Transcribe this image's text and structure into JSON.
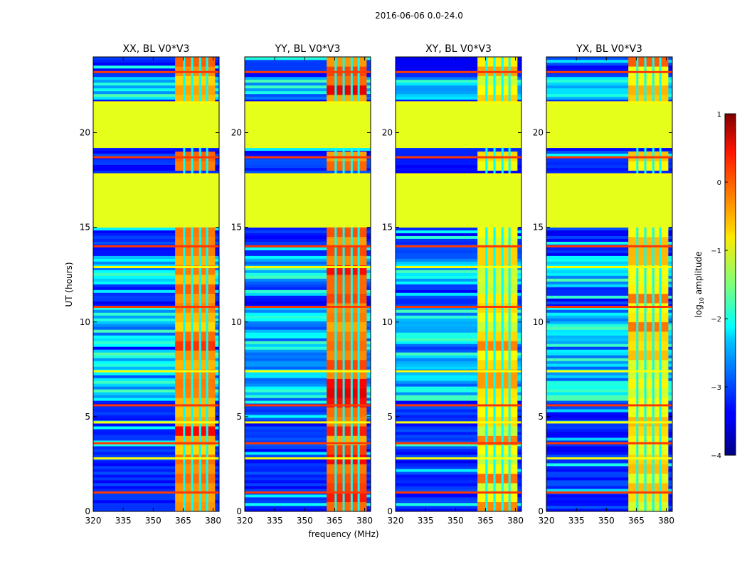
{
  "chart_data": {
    "type": "heatmap",
    "suptitle": "2016-06-06 0.0-24.0",
    "xlabel": "frequency (MHz)",
    "ylabel": "UT (hours)",
    "xlim": [
      320,
      383
    ],
    "ylim": [
      0,
      24
    ],
    "xticks": [
      "320",
      "335",
      "350",
      "365",
      "380"
    ],
    "xtick_values": [
      320,
      335,
      350,
      365,
      380
    ],
    "yticks": [
      "0",
      "5",
      "10",
      "15",
      "20"
    ],
    "ytick_values": [
      0,
      5,
      10,
      15,
      20
    ],
    "colorbar": {
      "label": "log10 amplitude",
      "label_base": "log",
      "label_sub": "10",
      "label_rest": " amplitude",
      "min": -4,
      "max": 1,
      "ticks": [
        "1",
        "0",
        "−1",
        "−2",
        "−3",
        "−4"
      ],
      "tick_values": [
        1,
        0,
        -1,
        -2,
        -3,
        -4
      ],
      "colormap": "jet"
    },
    "panels": [
      {
        "title": "XX, BL V0*V3",
        "band_level": -0.4
      },
      {
        "title": "YY, BL V0*V3",
        "band_level": -0.2
      },
      {
        "title": "XY, BL V0*V3",
        "band_level": -0.9
      },
      {
        "title": "YX, BL V0*V3",
        "band_level": -0.8
      }
    ],
    "structure": {
      "background_level": -3.2,
      "flagged_level": -1.0,
      "flagged_ut_ranges": [
        [
          15.0,
          17.8
        ],
        [
          19.2,
          21.6
        ]
      ],
      "rfi_band_mhz": [
        361,
        381
      ],
      "rfi_channels_mhz": [
        365.5,
        369.5,
        373.5,
        377.0
      ],
      "bright_ut_rows": [
        23.2,
        21.6,
        18.7,
        17.8,
        14.0,
        12.9,
        10.8,
        7.4,
        5.6,
        4.7,
        3.6,
        2.8,
        1.0
      ],
      "noisy_ut_ranges": [
        [
          5.8,
          8.6
        ],
        [
          8.7,
          10.8
        ],
        [
          12.0,
          13.5
        ],
        [
          21.7,
          23.0
        ]
      ]
    }
  }
}
